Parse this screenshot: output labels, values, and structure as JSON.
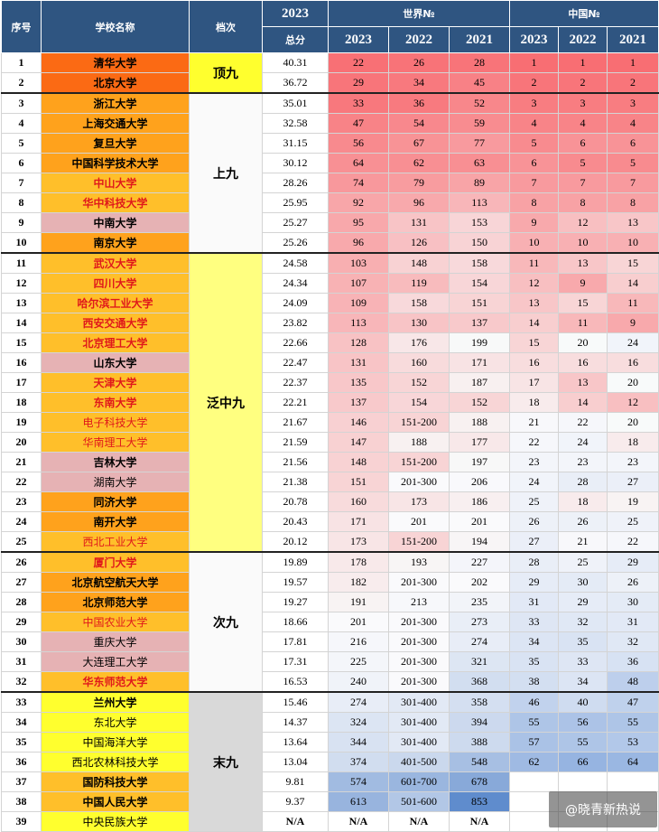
{
  "header": {
    "seq": "序号",
    "name": "学校名称",
    "tier": "档次",
    "year": "2023",
    "total": "总分",
    "world": "世界№",
    "china": "中国№",
    "years": [
      "2023",
      "2022",
      "2021"
    ]
  },
  "tiers": [
    {
      "label": "顶九",
      "start": 0,
      "span": 2,
      "color": "#ffff2e"
    },
    {
      "label": "上九",
      "start": 2,
      "span": 8,
      "color": "#fafafa"
    },
    {
      "label": "泛中九",
      "start": 10,
      "span": 15,
      "color": "#ffff80"
    },
    {
      "label": "次九",
      "start": 25,
      "span": 7,
      "color": "#fafafa"
    },
    {
      "label": "末九",
      "start": 32,
      "span": 7,
      "color": "#d9d9d9"
    }
  ],
  "rows": [
    {
      "seq": "1",
      "name": "清华大学",
      "score": "40.31",
      "w": [
        "22",
        "26",
        "28"
      ],
      "c": [
        "1",
        "1",
        "1"
      ],
      "nc": "#fb6a14",
      "tc": "#000000",
      "bold": true
    },
    {
      "seq": "2",
      "name": "北京大学",
      "score": "36.72",
      "w": [
        "29",
        "34",
        "45"
      ],
      "c": [
        "2",
        "2",
        "2"
      ],
      "nc": "#fb6a14",
      "tc": "#000000",
      "bold": true
    },
    {
      "seq": "3",
      "name": "浙江大学",
      "score": "35.01",
      "w": [
        "33",
        "36",
        "52"
      ],
      "c": [
        "3",
        "3",
        "3"
      ],
      "nc": "#ffa21c",
      "tc": "#000000",
      "bold": true
    },
    {
      "seq": "4",
      "name": "上海交通大学",
      "score": "32.58",
      "w": [
        "47",
        "54",
        "59"
      ],
      "c": [
        "4",
        "4",
        "4"
      ],
      "nc": "#ffa21c",
      "tc": "#000000",
      "bold": true
    },
    {
      "seq": "5",
      "name": "复旦大学",
      "score": "31.15",
      "w": [
        "56",
        "67",
        "77"
      ],
      "c": [
        "5",
        "6",
        "6"
      ],
      "nc": "#ffa21c",
      "tc": "#000000",
      "bold": true
    },
    {
      "seq": "6",
      "name": "中国科学技术大学",
      "score": "30.12",
      "w": [
        "64",
        "62",
        "63"
      ],
      "c": [
        "6",
        "5",
        "5"
      ],
      "nc": "#ffa21c",
      "tc": "#000000",
      "bold": true
    },
    {
      "seq": "7",
      "name": "中山大学",
      "score": "28.26",
      "w": [
        "74",
        "79",
        "89"
      ],
      "c": [
        "7",
        "7",
        "7"
      ],
      "nc": "#ffbf2a",
      "tc": "#e0191b",
      "bold": true
    },
    {
      "seq": "8",
      "name": "华中科技大学",
      "score": "25.95",
      "w": [
        "92",
        "96",
        "113"
      ],
      "c": [
        "8",
        "8",
        "8"
      ],
      "nc": "#ffbf2a",
      "tc": "#e0191b",
      "bold": true
    },
    {
      "seq": "9",
      "name": "中南大学",
      "score": "25.27",
      "w": [
        "95",
        "131",
        "153"
      ],
      "c": [
        "9",
        "12",
        "13"
      ],
      "nc": "#e6b2b4",
      "tc": "#000000",
      "bold": true
    },
    {
      "seq": "10",
      "name": "南京大学",
      "score": "25.26",
      "w": [
        "96",
        "126",
        "150"
      ],
      "c": [
        "10",
        "10",
        "10"
      ],
      "nc": "#ffa21c",
      "tc": "#000000",
      "bold": true
    },
    {
      "seq": "11",
      "name": "武汉大学",
      "score": "24.58",
      "w": [
        "103",
        "148",
        "158"
      ],
      "c": [
        "11",
        "13",
        "15"
      ],
      "nc": "#ffbf2a",
      "tc": "#e0191b",
      "bold": true
    },
    {
      "seq": "12",
      "name": "四川大学",
      "score": "24.34",
      "w": [
        "107",
        "119",
        "154"
      ],
      "c": [
        "12",
        "9",
        "14"
      ],
      "nc": "#ffbf2a",
      "tc": "#e0191b",
      "bold": true
    },
    {
      "seq": "13",
      "name": "哈尔滨工业大学",
      "score": "24.09",
      "w": [
        "109",
        "158",
        "151"
      ],
      "c": [
        "13",
        "15",
        "11"
      ],
      "nc": "#ffbf2a",
      "tc": "#e0191b",
      "bold": true
    },
    {
      "seq": "14",
      "name": "西安交通大学",
      "score": "23.82",
      "w": [
        "113",
        "130",
        "137"
      ],
      "c": [
        "14",
        "11",
        "9"
      ],
      "nc": "#ffbf2a",
      "tc": "#e0191b",
      "bold": true
    },
    {
      "seq": "15",
      "name": "北京理工大学",
      "score": "22.66",
      "w": [
        "128",
        "176",
        "199"
      ],
      "c": [
        "15",
        "20",
        "24"
      ],
      "nc": "#ffbf2a",
      "tc": "#e0191b",
      "bold": true
    },
    {
      "seq": "16",
      "name": "山东大学",
      "score": "22.47",
      "w": [
        "131",
        "160",
        "171"
      ],
      "c": [
        "16",
        "16",
        "16"
      ],
      "nc": "#e6b2b4",
      "tc": "#000000",
      "bold": true
    },
    {
      "seq": "17",
      "name": "天津大学",
      "score": "22.37",
      "w": [
        "135",
        "152",
        "187"
      ],
      "c": [
        "17",
        "13",
        "20"
      ],
      "nc": "#ffbf2a",
      "tc": "#e0191b",
      "bold": true
    },
    {
      "seq": "18",
      "name": "东南大学",
      "score": "22.21",
      "w": [
        "137",
        "154",
        "152"
      ],
      "c": [
        "18",
        "14",
        "12"
      ],
      "nc": "#ffbf2a",
      "tc": "#e0191b",
      "bold": true
    },
    {
      "seq": "19",
      "name": "电子科技大学",
      "score": "21.67",
      "w": [
        "146",
        "151-200",
        "188"
      ],
      "c": [
        "21",
        "22",
        "20"
      ],
      "nc": "#ffbf2a",
      "tc": "#e0191b",
      "bold": false
    },
    {
      "seq": "20",
      "name": "华南理工大学",
      "score": "21.59",
      "w": [
        "147",
        "188",
        "177"
      ],
      "c": [
        "22",
        "24",
        "18"
      ],
      "nc": "#ffbf2a",
      "tc": "#e0191b",
      "bold": false
    },
    {
      "seq": "21",
      "name": "吉林大学",
      "score": "21.56",
      "w": [
        "148",
        "151-200",
        "197"
      ],
      "c": [
        "23",
        "23",
        "23"
      ],
      "nc": "#e6b2b4",
      "tc": "#000000",
      "bold": true
    },
    {
      "seq": "22",
      "name": "湖南大学",
      "score": "21.38",
      "w": [
        "151",
        "201-300",
        "206"
      ],
      "c": [
        "24",
        "28",
        "27"
      ],
      "nc": "#e6b2b4",
      "tc": "#000000",
      "bold": false
    },
    {
      "seq": "23",
      "name": "同济大学",
      "score": "20.78",
      "w": [
        "160",
        "173",
        "186"
      ],
      "c": [
        "25",
        "18",
        "19"
      ],
      "nc": "#ffa21c",
      "tc": "#000000",
      "bold": true
    },
    {
      "seq": "24",
      "name": "南开大学",
      "score": "20.43",
      "w": [
        "171",
        "201",
        "201"
      ],
      "c": [
        "26",
        "26",
        "25"
      ],
      "nc": "#ffa21c",
      "tc": "#000000",
      "bold": true
    },
    {
      "seq": "25",
      "name": "西北工业大学",
      "score": "20.12",
      "w": [
        "173",
        "151-200",
        "194"
      ],
      "c": [
        "27",
        "21",
        "22"
      ],
      "nc": "#ffbf2a",
      "tc": "#e0191b",
      "bold": false
    },
    {
      "seq": "26",
      "name": "厦门大学",
      "score": "19.89",
      "w": [
        "178",
        "193",
        "227"
      ],
      "c": [
        "28",
        "25",
        "29"
      ],
      "nc": "#ffbf2a",
      "tc": "#e0191b",
      "bold": true
    },
    {
      "seq": "27",
      "name": "北京航空航天大学",
      "score": "19.57",
      "w": [
        "182",
        "201-300",
        "202"
      ],
      "c": [
        "29",
        "30",
        "26"
      ],
      "nc": "#ffa21c",
      "tc": "#000000",
      "bold": true
    },
    {
      "seq": "28",
      "name": "北京师范大学",
      "score": "19.27",
      "w": [
        "191",
        "213",
        "235"
      ],
      "c": [
        "31",
        "29",
        "30"
      ],
      "nc": "#ffa21c",
      "tc": "#000000",
      "bold": true
    },
    {
      "seq": "29",
      "name": "中国农业大学",
      "score": "18.66",
      "w": [
        "201",
        "201-300",
        "273"
      ],
      "c": [
        "33",
        "32",
        "31"
      ],
      "nc": "#ffbf2a",
      "tc": "#e0191b",
      "bold": false
    },
    {
      "seq": "30",
      "name": "重庆大学",
      "score": "17.81",
      "w": [
        "216",
        "201-300",
        "274"
      ],
      "c": [
        "34",
        "35",
        "32"
      ],
      "nc": "#e6b2b4",
      "tc": "#000000",
      "bold": false
    },
    {
      "seq": "31",
      "name": "大连理工大学",
      "score": "17.31",
      "w": [
        "225",
        "201-300",
        "321"
      ],
      "c": [
        "35",
        "33",
        "36"
      ],
      "nc": "#e6b2b4",
      "tc": "#000000",
      "bold": false
    },
    {
      "seq": "32",
      "name": "华东师范大学",
      "score": "16.53",
      "w": [
        "240",
        "201-300",
        "368"
      ],
      "c": [
        "38",
        "34",
        "48"
      ],
      "nc": "#ffbf2a",
      "tc": "#e0191b",
      "bold": true
    },
    {
      "seq": "33",
      "name": "兰州大学",
      "score": "15.46",
      "w": [
        "274",
        "301-400",
        "358"
      ],
      "c": [
        "46",
        "40",
        "47"
      ],
      "nc": "#ffff2e",
      "tc": "#000000",
      "bold": true
    },
    {
      "seq": "34",
      "name": "东北大学",
      "score": "14.37",
      "w": [
        "324",
        "301-400",
        "394"
      ],
      "c": [
        "55",
        "56",
        "55"
      ],
      "nc": "#ffff2e",
      "tc": "#000000",
      "bold": false
    },
    {
      "seq": "35",
      "name": "中国海洋大学",
      "score": "13.64",
      "w": [
        "344",
        "301-400",
        "388"
      ],
      "c": [
        "57",
        "55",
        "53"
      ],
      "nc": "#ffff2e",
      "tc": "#000000",
      "bold": false
    },
    {
      "seq": "36",
      "name": "西北农林科技大学",
      "score": "13.04",
      "w": [
        "374",
        "401-500",
        "548"
      ],
      "c": [
        "62",
        "66",
        "64"
      ],
      "nc": "#ffff2e",
      "tc": "#000000",
      "bold": false
    },
    {
      "seq": "37",
      "name": "国防科技大学",
      "score": "9.81",
      "w": [
        "574",
        "601-700",
        "678"
      ],
      "c": [
        "",
        "",
        ""
      ],
      "nc": "#ffbf2a",
      "tc": "#000000",
      "bold": true
    },
    {
      "seq": "38",
      "name": "中国人民大学",
      "score": "9.37",
      "w": [
        "613",
        "501-600",
        "853"
      ],
      "c": [
        "",
        "",
        ""
      ],
      "nc": "#ffbf2a",
      "tc": "#000000",
      "bold": true
    },
    {
      "seq": "39",
      "name": "中央民族大学",
      "score": "N/A",
      "w": [
        "N/A",
        "N/A",
        "N/A"
      ],
      "c": [
        "",
        "",
        ""
      ],
      "nc": "#ffff2e",
      "tc": "#000000",
      "bold": false
    }
  ],
  "watermark": "@晓青新热说",
  "colors": {
    "header_bg": "#2f5581",
    "header_text": "#ffffff"
  }
}
